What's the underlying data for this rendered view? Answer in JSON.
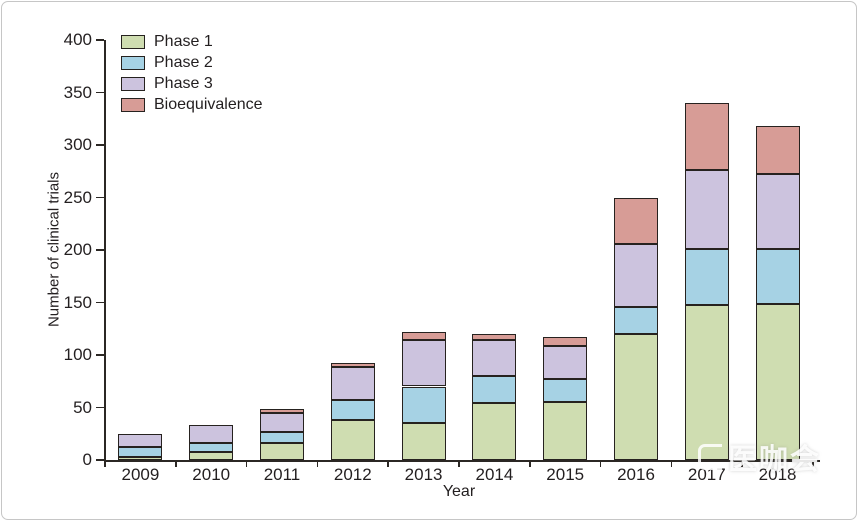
{
  "chart_data": {
    "type": "bar",
    "stacked": true,
    "title": "",
    "xlabel": "Year",
    "ylabel": "Number of clinical trials",
    "ylim": [
      0,
      400
    ],
    "yticks": [
      0,
      50,
      100,
      150,
      200,
      250,
      300,
      350,
      400
    ],
    "grid": false,
    "legend_position": "top-left",
    "categories": [
      "2009",
      "2010",
      "2011",
      "2012",
      "2013",
      "2014",
      "2015",
      "2016",
      "2017",
      "2018"
    ],
    "series": [
      {
        "name": "Phase 1",
        "color": "#cfddb1",
        "values": [
          3,
          8,
          16,
          38,
          35,
          54,
          55,
          120,
          148,
          149
        ]
      },
      {
        "name": "Phase 2",
        "color": "#a6d2e4",
        "values": [
          9,
          8,
          11,
          19,
          35,
          26,
          22,
          26,
          53,
          52
        ]
      },
      {
        "name": "Phase 3",
        "color": "#ccc3de",
        "values": [
          13,
          17,
          18,
          32,
          44,
          34,
          32,
          60,
          75,
          71
        ]
      },
      {
        "name": "Bioequivalence",
        "color": "#d79c96",
        "values": [
          0,
          0,
          4,
          3,
          8,
          6,
          8,
          44,
          64,
          46
        ]
      }
    ],
    "totals": [
      25,
      33,
      49,
      92,
      122,
      120,
      117,
      250,
      340,
      318
    ]
  },
  "axes": {
    "y_axis_title": "Number of clinical trials",
    "x_axis_title": "Year"
  },
  "watermark": {
    "text": "医咖会"
  },
  "colors": {
    "axis": "#2b2724",
    "bar_border": "#26221f",
    "frame_border": "#c6c6c6",
    "background": "#ffffff"
  }
}
